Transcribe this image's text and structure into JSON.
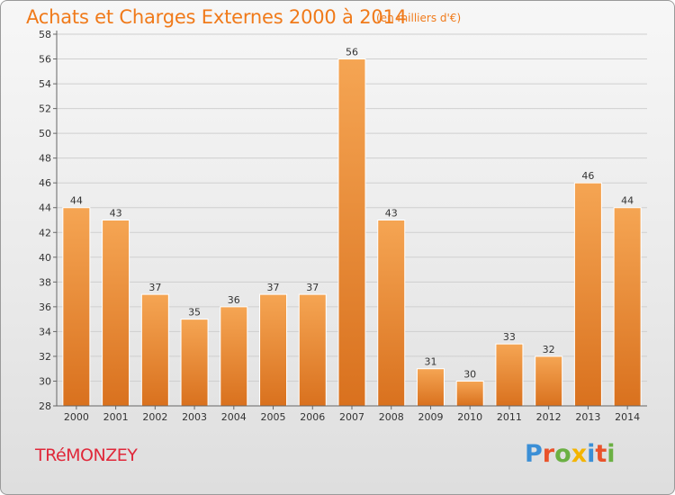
{
  "title": "Achats et Charges Externes 2000 à 2014",
  "subtitle": "(en milliers d'€)",
  "footer_label": "TRéMONZEY",
  "logo": {
    "letters": [
      "P",
      "r",
      "o",
      "x",
      "i",
      "t",
      "i"
    ],
    "colors": [
      "#3b8fd6",
      "#e9532b",
      "#6bb043",
      "#f4b400",
      "#3b8fd6",
      "#e9532b",
      "#6bb043"
    ]
  },
  "colors": {
    "bar_top": "#f5a553",
    "bar_bottom": "#d9711e",
    "title": "#f07a1a",
    "footer": "#e0283a"
  },
  "chart_data": {
    "type": "bar",
    "categories": [
      "2000",
      "2001",
      "2002",
      "2003",
      "2004",
      "2005",
      "2006",
      "2007",
      "2008",
      "2009",
      "2010",
      "2011",
      "2012",
      "2013",
      "2014"
    ],
    "values": [
      44,
      43,
      37,
      35,
      36,
      37,
      37,
      56,
      43,
      31,
      30,
      33,
      32,
      46,
      44
    ],
    "value_labels": [
      "44",
      "43",
      "37",
      "35",
      "36",
      "37",
      "37",
      "56",
      "43",
      "31",
      "30",
      "33",
      "32",
      "46",
      "44"
    ],
    "yticks": [
      "28",
      "30",
      "32",
      "34",
      "36",
      "38",
      "40",
      "42",
      "44",
      "46",
      "48",
      "50",
      "52",
      "54",
      "56",
      "58"
    ],
    "ylim": [
      28,
      58
    ],
    "grid": true,
    "title": "Achats et Charges Externes 2000 à 2014",
    "xlabel": "",
    "ylabel": ""
  }
}
